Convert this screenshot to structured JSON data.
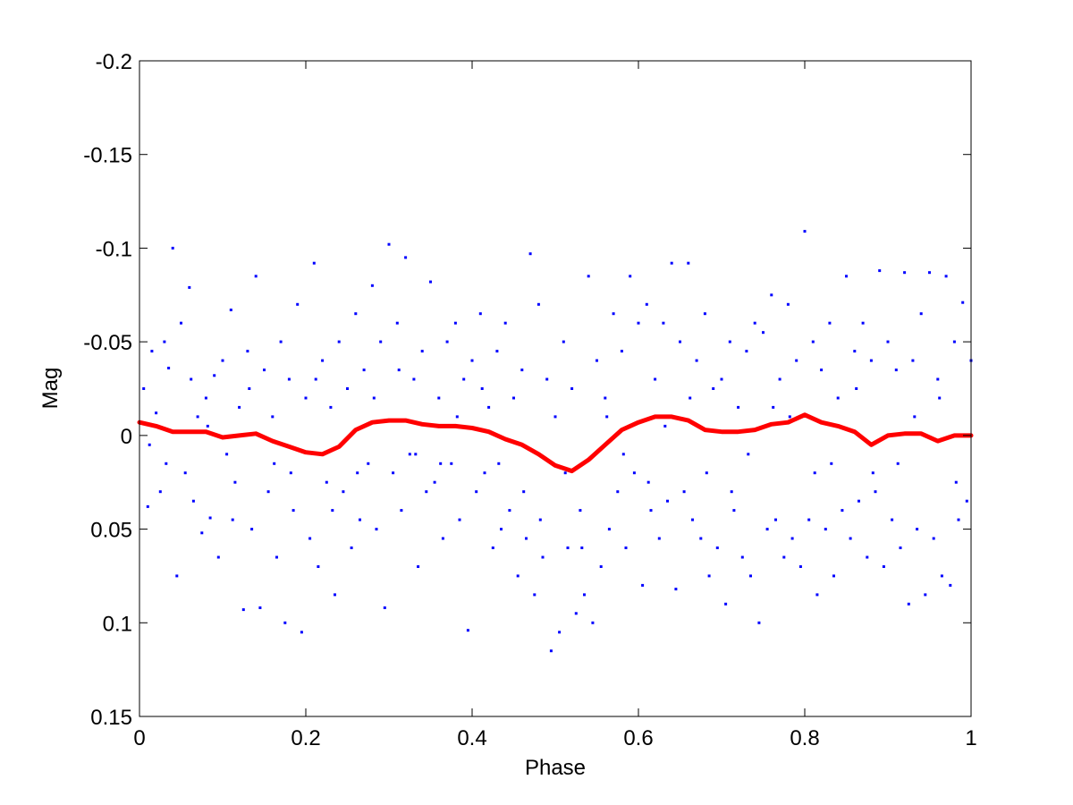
{
  "chart_data": {
    "type": "scatter",
    "title": "",
    "xlabel": "Phase",
    "ylabel": "Mag",
    "xlim": [
      0,
      1
    ],
    "ylim": [
      -0.2,
      0.15
    ],
    "y_axis_inverted": true,
    "grid": false,
    "box": true,
    "x_ticks": [
      0,
      0.2,
      0.4,
      0.6,
      0.8,
      1
    ],
    "x_tick_labels": [
      "0",
      "0.2",
      "0.4",
      "0.6",
      "0.8",
      "1"
    ],
    "y_ticks": [
      -0.2,
      -0.15,
      -0.1,
      -0.05,
      0,
      0.05,
      0.1,
      0.15
    ],
    "y_tick_labels": [
      "-0.2",
      "-0.15",
      "-0.1",
      "-0.05",
      "0",
      "0.05",
      "0.1",
      "0.15"
    ],
    "series": [
      {
        "type": "scatter",
        "color": "#0000ff",
        "marker": "dot",
        "note": "dense scatter of ~2000 points; sampled representative points",
        "points": [
          [
            0.005,
            -0.025
          ],
          [
            0.01,
            0.038
          ],
          [
            0.015,
            -0.045
          ],
          [
            0.02,
            -0.012
          ],
          [
            0.025,
            0.03
          ],
          [
            0.03,
            -0.05
          ],
          [
            0.035,
            -0.036
          ],
          [
            0.04,
            -0.1
          ],
          [
            0.045,
            0.075
          ],
          [
            0.05,
            -0.06
          ],
          [
            0.055,
            0.02
          ],
          [
            0.06,
            -0.079
          ],
          [
            0.065,
            0.035
          ],
          [
            0.07,
            -0.01
          ],
          [
            0.075,
            0.052
          ],
          [
            0.08,
            -0.02
          ],
          [
            0.085,
            0.044
          ],
          [
            0.09,
            -0.032
          ],
          [
            0.095,
            0.065
          ],
          [
            0.1,
            -0.04
          ],
          [
            0.105,
            0.01
          ],
          [
            0.11,
            -0.067
          ],
          [
            0.115,
            0.025
          ],
          [
            0.12,
            -0.015
          ],
          [
            0.125,
            0.093
          ],
          [
            0.13,
            -0.045
          ],
          [
            0.135,
            0.05
          ],
          [
            0.14,
            -0.085
          ],
          [
            0.145,
            0.092
          ],
          [
            0.15,
            -0.035
          ],
          [
            0.155,
            0.03
          ],
          [
            0.16,
            -0.01
          ],
          [
            0.165,
            0.065
          ],
          [
            0.17,
            -0.05
          ],
          [
            0.175,
            0.1
          ],
          [
            0.18,
            -0.03
          ],
          [
            0.185,
            0.04
          ],
          [
            0.19,
            -0.07
          ],
          [
            0.195,
            0.105
          ],
          [
            0.2,
            -0.02
          ],
          [
            0.205,
            0.055
          ],
          [
            0.21,
            -0.092
          ],
          [
            0.215,
            0.07
          ],
          [
            0.22,
            -0.04
          ],
          [
            0.225,
            0.025
          ],
          [
            0.23,
            -0.015
          ],
          [
            0.235,
            0.085
          ],
          [
            0.24,
            -0.05
          ],
          [
            0.245,
            0.03
          ],
          [
            0.25,
            -0.025
          ],
          [
            0.255,
            0.06
          ],
          [
            0.26,
            -0.065
          ],
          [
            0.265,
            0.045
          ],
          [
            0.27,
            -0.035
          ],
          [
            0.275,
            0.015
          ],
          [
            0.28,
            -0.08
          ],
          [
            0.285,
            0.05
          ],
          [
            0.29,
            -0.05
          ],
          [
            0.295,
            0.092
          ],
          [
            0.3,
            -0.102
          ],
          [
            0.305,
            0.02
          ],
          [
            0.31,
            -0.06
          ],
          [
            0.315,
            0.04
          ],
          [
            0.32,
            -0.095
          ],
          [
            0.325,
            0.01
          ],
          [
            0.33,
            -0.03
          ],
          [
            0.335,
            0.07
          ],
          [
            0.34,
            -0.045
          ],
          [
            0.345,
            0.03
          ],
          [
            0.35,
            -0.082
          ],
          [
            0.355,
            0.025
          ],
          [
            0.36,
            -0.02
          ],
          [
            0.365,
            0.055
          ],
          [
            0.37,
            -0.05
          ],
          [
            0.375,
            0.015
          ],
          [
            0.38,
            -0.06
          ],
          [
            0.385,
            0.045
          ],
          [
            0.39,
            -0.03
          ],
          [
            0.395,
            0.104
          ],
          [
            0.4,
            -0.04
          ],
          [
            0.405,
            0.03
          ],
          [
            0.41,
            -0.065
          ],
          [
            0.415,
            0.02
          ],
          [
            0.42,
            -0.015
          ],
          [
            0.425,
            0.06
          ],
          [
            0.43,
            -0.045
          ],
          [
            0.435,
            0.05
          ],
          [
            0.44,
            -0.06
          ],
          [
            0.445,
            0.04
          ],
          [
            0.45,
            -0.02
          ],
          [
            0.455,
            0.075
          ],
          [
            0.46,
            -0.035
          ],
          [
            0.465,
            0.055
          ],
          [
            0.47,
            -0.097
          ],
          [
            0.475,
            0.085
          ],
          [
            0.48,
            -0.07
          ],
          [
            0.485,
            0.065
          ],
          [
            0.49,
            -0.03
          ],
          [
            0.495,
            0.115
          ],
          [
            0.5,
            -0.01
          ],
          [
            0.505,
            0.105
          ],
          [
            0.51,
            -0.05
          ],
          [
            0.515,
            0.06
          ],
          [
            0.52,
            -0.025
          ],
          [
            0.525,
            0.095
          ],
          [
            0.53,
            0.04
          ],
          [
            0.535,
            0.085
          ],
          [
            0.54,
            -0.085
          ],
          [
            0.545,
            0.1
          ],
          [
            0.55,
            -0.04
          ],
          [
            0.555,
            0.07
          ],
          [
            0.56,
            -0.02
          ],
          [
            0.565,
            0.05
          ],
          [
            0.57,
            -0.065
          ],
          [
            0.575,
            0.03
          ],
          [
            0.58,
            -0.045
          ],
          [
            0.585,
            0.06
          ],
          [
            0.59,
            -0.085
          ],
          [
            0.595,
            0.02
          ],
          [
            0.6,
            -0.06
          ],
          [
            0.605,
            0.08
          ],
          [
            0.61,
            -0.07
          ],
          [
            0.615,
            0.04
          ],
          [
            0.62,
            -0.03
          ],
          [
            0.625,
            0.055
          ],
          [
            0.63,
            -0.06
          ],
          [
            0.635,
            0.035
          ],
          [
            0.64,
            -0.092
          ],
          [
            0.645,
            0.082
          ],
          [
            0.65,
            -0.05
          ],
          [
            0.655,
            0.03
          ],
          [
            0.66,
            -0.092
          ],
          [
            0.665,
            0.045
          ],
          [
            0.67,
            -0.04
          ],
          [
            0.675,
            0.055
          ],
          [
            0.68,
            -0.065
          ],
          [
            0.685,
            0.075
          ],
          [
            0.69,
            -0.025
          ],
          [
            0.695,
            0.06
          ],
          [
            0.7,
            -0.03
          ],
          [
            0.705,
            0.09
          ],
          [
            0.71,
            -0.05
          ],
          [
            0.715,
            0.04
          ],
          [
            0.72,
            -0.015
          ],
          [
            0.725,
            0.065
          ],
          [
            0.73,
            -0.045
          ],
          [
            0.735,
            0.075
          ],
          [
            0.74,
            -0.06
          ],
          [
            0.745,
            0.1
          ],
          [
            0.75,
            -0.055
          ],
          [
            0.755,
            0.05
          ],
          [
            0.76,
            -0.075
          ],
          [
            0.765,
            0.045
          ],
          [
            0.77,
            -0.03
          ],
          [
            0.775,
            0.065
          ],
          [
            0.78,
            -0.07
          ],
          [
            0.785,
            0.055
          ],
          [
            0.79,
            -0.04
          ],
          [
            0.795,
            0.07
          ],
          [
            0.8,
            -0.109
          ],
          [
            0.805,
            0.045
          ],
          [
            0.81,
            -0.05
          ],
          [
            0.815,
            0.085
          ],
          [
            0.82,
            -0.035
          ],
          [
            0.825,
            0.05
          ],
          [
            0.83,
            -0.06
          ],
          [
            0.835,
            0.075
          ],
          [
            0.84,
            -0.02
          ],
          [
            0.845,
            0.04
          ],
          [
            0.85,
            -0.085
          ],
          [
            0.855,
            0.055
          ],
          [
            0.86,
            -0.045
          ],
          [
            0.865,
            0.035
          ],
          [
            0.87,
            -0.06
          ],
          [
            0.875,
            0.065
          ],
          [
            0.88,
            -0.04
          ],
          [
            0.885,
            0.03
          ],
          [
            0.89,
            -0.088
          ],
          [
            0.895,
            0.07
          ],
          [
            0.9,
            -0.05
          ],
          [
            0.905,
            0.045
          ],
          [
            0.91,
            -0.035
          ],
          [
            0.915,
            0.06
          ],
          [
            0.92,
            -0.087
          ],
          [
            0.925,
            0.09
          ],
          [
            0.93,
            -0.04
          ],
          [
            0.935,
            0.05
          ],
          [
            0.94,
            -0.065
          ],
          [
            0.945,
            0.085
          ],
          [
            0.95,
            -0.087
          ],
          [
            0.955,
            0.055
          ],
          [
            0.96,
            -0.03
          ],
          [
            0.965,
            0.075
          ],
          [
            0.97,
            -0.085
          ],
          [
            0.975,
            0.08
          ],
          [
            0.98,
            -0.05
          ],
          [
            0.985,
            0.045
          ],
          [
            0.99,
            -0.071
          ],
          [
            0.995,
            0.035
          ],
          [
            1.0,
            -0.04
          ],
          [
            0.012,
            0.005
          ],
          [
            0.062,
            -0.03
          ],
          [
            0.112,
            0.045
          ],
          [
            0.162,
            0.015
          ],
          [
            0.212,
            -0.03
          ],
          [
            0.262,
            0.02
          ],
          [
            0.312,
            -0.035
          ],
          [
            0.362,
            0.015
          ],
          [
            0.412,
            -0.025
          ],
          [
            0.462,
            0.03
          ],
          [
            0.512,
            0.02
          ],
          [
            0.562,
            -0.01
          ],
          [
            0.612,
            0.025
          ],
          [
            0.662,
            -0.02
          ],
          [
            0.712,
            0.03
          ],
          [
            0.762,
            -0.015
          ],
          [
            0.812,
            0.02
          ],
          [
            0.862,
            -0.025
          ],
          [
            0.912,
            0.015
          ],
          [
            0.962,
            -0.02
          ],
          [
            0.032,
            0.015
          ],
          [
            0.082,
            -0.005
          ],
          [
            0.132,
            -0.025
          ],
          [
            0.182,
            0.02
          ],
          [
            0.232,
            0.04
          ],
          [
            0.282,
            -0.02
          ],
          [
            0.332,
            0.01
          ],
          [
            0.382,
            -0.01
          ],
          [
            0.432,
            0.015
          ],
          [
            0.482,
            0.045
          ],
          [
            0.532,
            0.06
          ],
          [
            0.582,
            0.01
          ],
          [
            0.632,
            -0.005
          ],
          [
            0.682,
            0.02
          ],
          [
            0.732,
            0.01
          ],
          [
            0.782,
            -0.01
          ],
          [
            0.832,
            0.015
          ],
          [
            0.882,
            0.02
          ],
          [
            0.932,
            -0.01
          ],
          [
            0.982,
            0.025
          ]
        ]
      },
      {
        "type": "line",
        "color": "#ff0000",
        "note": "smoothed running mean",
        "points": [
          [
            0.0,
            -0.007
          ],
          [
            0.02,
            -0.005
          ],
          [
            0.04,
            -0.002
          ],
          [
            0.06,
            -0.002
          ],
          [
            0.08,
            -0.002
          ],
          [
            0.1,
            0.001
          ],
          [
            0.12,
            0.0
          ],
          [
            0.14,
            -0.001
          ],
          [
            0.16,
            0.003
          ],
          [
            0.18,
            0.006
          ],
          [
            0.2,
            0.009
          ],
          [
            0.22,
            0.01
          ],
          [
            0.24,
            0.006
          ],
          [
            0.26,
            -0.003
          ],
          [
            0.28,
            -0.007
          ],
          [
            0.3,
            -0.008
          ],
          [
            0.32,
            -0.008
          ],
          [
            0.34,
            -0.006
          ],
          [
            0.36,
            -0.005
          ],
          [
            0.38,
            -0.005
          ],
          [
            0.4,
            -0.004
          ],
          [
            0.42,
            -0.002
          ],
          [
            0.44,
            0.002
          ],
          [
            0.46,
            0.005
          ],
          [
            0.48,
            0.01
          ],
          [
            0.5,
            0.016
          ],
          [
            0.52,
            0.019
          ],
          [
            0.54,
            0.013
          ],
          [
            0.56,
            0.005
          ],
          [
            0.58,
            -0.003
          ],
          [
            0.6,
            -0.007
          ],
          [
            0.62,
            -0.01
          ],
          [
            0.64,
            -0.01
          ],
          [
            0.66,
            -0.008
          ],
          [
            0.68,
            -0.003
          ],
          [
            0.7,
            -0.002
          ],
          [
            0.72,
            -0.002
          ],
          [
            0.74,
            -0.003
          ],
          [
            0.76,
            -0.006
          ],
          [
            0.78,
            -0.007
          ],
          [
            0.8,
            -0.011
          ],
          [
            0.82,
            -0.007
          ],
          [
            0.84,
            -0.005
          ],
          [
            0.86,
            -0.002
          ],
          [
            0.88,
            0.005
          ],
          [
            0.9,
            0.0
          ],
          [
            0.92,
            -0.001
          ],
          [
            0.94,
            -0.001
          ],
          [
            0.96,
            0.003
          ],
          [
            0.98,
            0.0
          ],
          [
            1.0,
            0.0
          ]
        ]
      }
    ]
  }
}
